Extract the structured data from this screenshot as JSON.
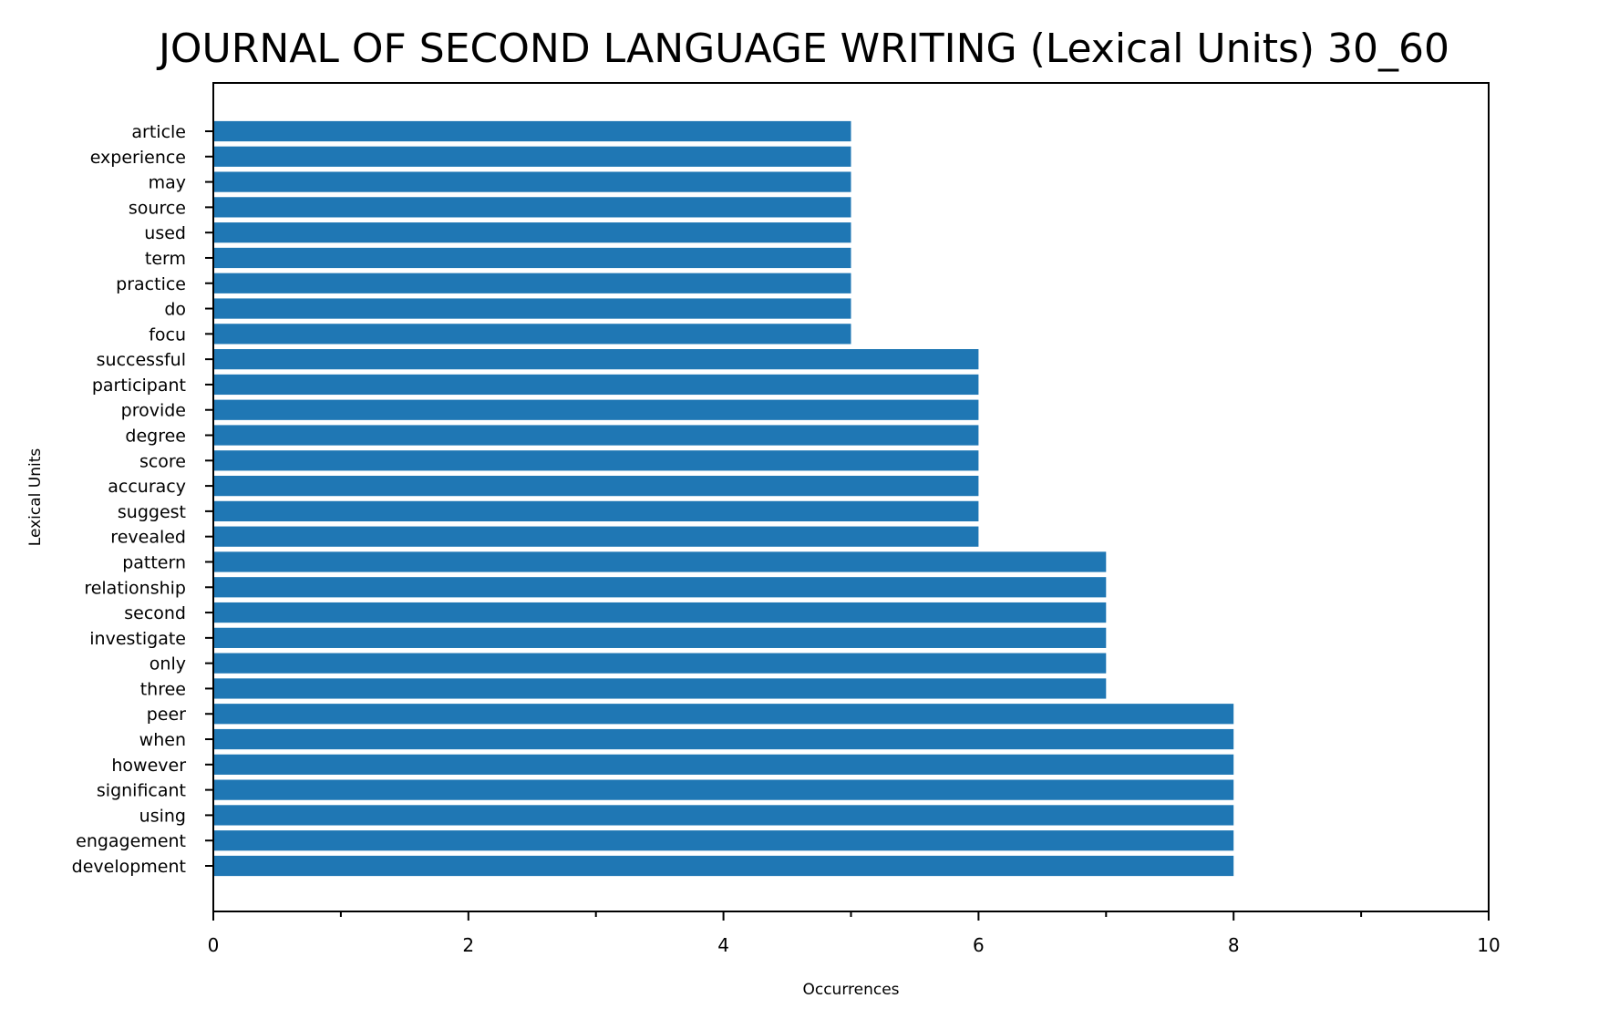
{
  "chart_data": {
    "type": "bar",
    "orientation": "horizontal",
    "title": "JOURNAL OF SECOND LANGUAGE WRITING (Lexical Units) 30_60",
    "xlabel": "Occurrences",
    "ylabel": "Lexical Units",
    "xlim": [
      0,
      10
    ],
    "xticks": [
      0,
      2,
      4,
      6,
      8,
      10
    ],
    "xtick_labels": [
      "0",
      "2",
      "4",
      "6",
      "8",
      "10"
    ],
    "grid": false,
    "bar_color": "#1f77b4",
    "categories": [
      "article",
      "experience",
      "may",
      "source",
      "used",
      "term",
      "practice",
      "do",
      "focu",
      "successful",
      "participant",
      "provide",
      "degree",
      "score",
      "accuracy",
      "suggest",
      "revealed",
      "pattern",
      "relationship",
      "second",
      "investigate",
      "only",
      "three",
      "peer",
      "when",
      "however",
      "significant",
      "using",
      "engagement",
      "development"
    ],
    "values": [
      5,
      5,
      5,
      5,
      5,
      5,
      5,
      5,
      5,
      6,
      6,
      6,
      6,
      6,
      6,
      6,
      6,
      7,
      7,
      7,
      7,
      7,
      7,
      8,
      8,
      8,
      8,
      8,
      8,
      8
    ]
  }
}
